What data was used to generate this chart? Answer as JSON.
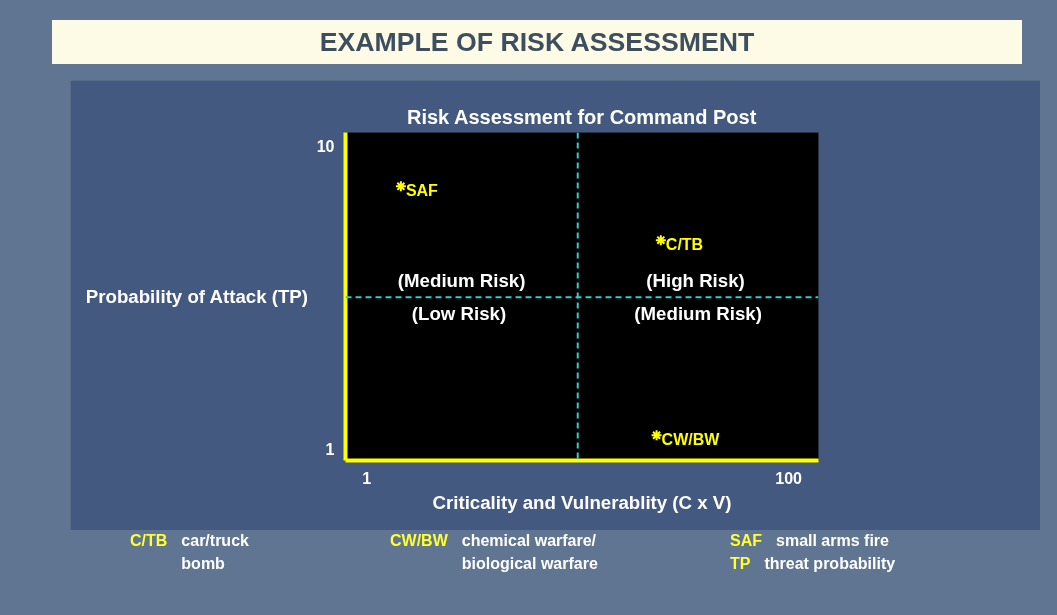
{
  "chart_data": {
    "type": "scatter",
    "title": "EXAMPLE OF RISK ASSESSMENT",
    "subtitle": "Risk Assessment for Command Post",
    "xlabel": "Criticality and Vulnerablity (C x V)",
    "ylabel": "Probability of Attack (TP)",
    "xlim": [
      -4,
      107
    ],
    "ylim": [
      0.65,
      10.4
    ],
    "xticks": [
      1,
      100
    ],
    "yticks": [
      1,
      10
    ],
    "grid": false,
    "marker": "cross",
    "series": [
      {
        "color": "#ffff00",
        "x": [
          9,
          70,
          69
        ],
        "values": [
          8.8,
          7.2,
          1.4
        ]
      }
    ],
    "ref_lines": [
      {
        "axis": "x",
        "value": 50.5,
        "color": "#33cccc",
        "line_style": "dashed"
      },
      {
        "axis": "y",
        "value": 5.5,
        "color": "#33cccc",
        "line_style": "dashed"
      }
    ],
    "annotations": [
      {
        "text": "SAF",
        "x": 9,
        "y": 8.8
      },
      {
        "text": "C/TB",
        "x": 70,
        "y": 7.2
      },
      {
        "text": "CW/BW",
        "x": 69,
        "y": 1.4
      },
      "(Medium Risk)",
      "(Low  Risk)",
      "(High  Risk)",
      "(Medium Risk)",
      "C/TB car/truck bomb",
      "CW/BW chemical warfare/ biological warfare",
      "SAF small arms fire",
      "TP threat probability"
    ]
  }
}
